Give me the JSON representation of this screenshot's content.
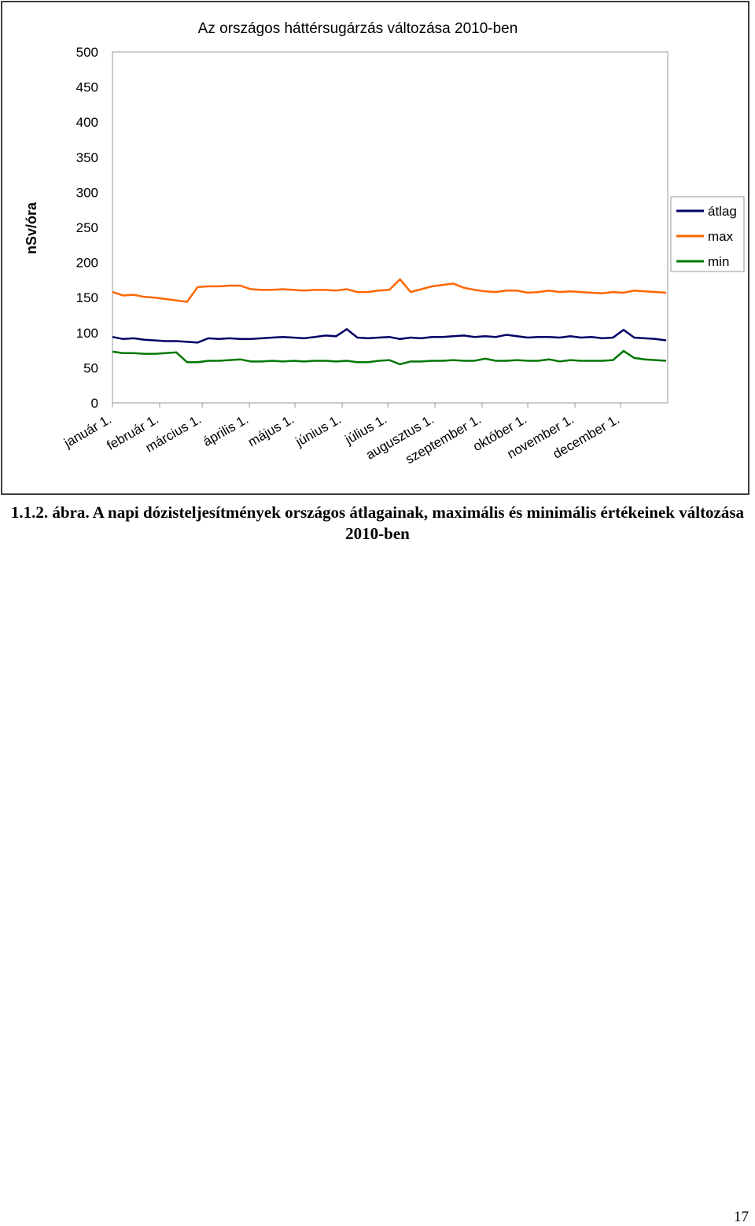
{
  "chart_data": {
    "type": "line",
    "title": "Az országos háttérsugárzás változása 2010-ben",
    "y_label": "nSv/óra",
    "x": [
      1,
      8,
      15,
      22,
      29,
      36,
      43,
      50,
      57,
      64,
      71,
      78,
      85,
      92,
      99,
      106,
      113,
      120,
      127,
      134,
      141,
      148,
      155,
      162,
      169,
      176,
      183,
      190,
      197,
      204,
      211,
      218,
      225,
      232,
      239,
      246,
      253,
      260,
      267,
      274,
      281,
      288,
      295,
      302,
      309,
      316,
      323,
      330,
      337,
      344,
      351,
      358,
      365
    ],
    "xlim": [
      1,
      366
    ],
    "xticks": [
      {
        "value": 1,
        "label": "január 1."
      },
      {
        "value": 32,
        "label": "február 1."
      },
      {
        "value": 60,
        "label": "március 1."
      },
      {
        "value": 91,
        "label": "április 1."
      },
      {
        "value": 121,
        "label": "május 1."
      },
      {
        "value": 152,
        "label": "június 1."
      },
      {
        "value": 182,
        "label": "július 1."
      },
      {
        "value": 213,
        "label": "augusztus 1."
      },
      {
        "value": 244,
        "label": "szeptember 1."
      },
      {
        "value": 274,
        "label": "október 1."
      },
      {
        "value": 305,
        "label": "november 1."
      },
      {
        "value": 335,
        "label": "december 1."
      }
    ],
    "ylim": [
      0,
      500
    ],
    "yticks": [
      0,
      50,
      100,
      150,
      200,
      250,
      300,
      350,
      400,
      450,
      500
    ],
    "series": [
      {
        "name": "átlag",
        "color": "#000066",
        "values": [
          94,
          91,
          92,
          90,
          89,
          88,
          88,
          87,
          86,
          92,
          91,
          92,
          91,
          91,
          92,
          93,
          94,
          93,
          92,
          94,
          96,
          95,
          105,
          93,
          92,
          93,
          94,
          91,
          93,
          92,
          94,
          94,
          95,
          96,
          94,
          95,
          94,
          97,
          95,
          93,
          94,
          94,
          93,
          95,
          93,
          94,
          92,
          93,
          104,
          93,
          92,
          91,
          89
        ]
      },
      {
        "name": "max",
        "color": "#ff6600",
        "values": [
          158,
          153,
          154,
          151,
          150,
          148,
          146,
          144,
          165,
          166,
          166,
          167,
          167,
          162,
          161,
          161,
          162,
          161,
          160,
          161,
          161,
          160,
          162,
          158,
          158,
          160,
          161,
          176,
          158,
          162,
          166,
          168,
          170,
          164,
          161,
          159,
          158,
          160,
          160,
          157,
          158,
          160,
          158,
          159,
          158,
          157,
          156,
          158,
          157,
          160,
          159,
          158,
          157
        ]
      },
      {
        "name": "min",
        "color": "#007700",
        "values": [
          73,
          71,
          71,
          70,
          70,
          71,
          72,
          58,
          58,
          60,
          60,
          61,
          62,
          59,
          59,
          60,
          59,
          60,
          59,
          60,
          60,
          59,
          60,
          58,
          58,
          60,
          61,
          55,
          59,
          59,
          60,
          60,
          61,
          60,
          60,
          63,
          60,
          60,
          61,
          60,
          60,
          62,
          59,
          61,
          60,
          60,
          60,
          61,
          74,
          64,
          62,
          61,
          60
        ]
      }
    ]
  },
  "caption": "1.1.2. ábra. A napi dózisteljesítmények országos átlagainak, maximális és minimális értékeinek változása 2010-ben",
  "page_number": "17"
}
